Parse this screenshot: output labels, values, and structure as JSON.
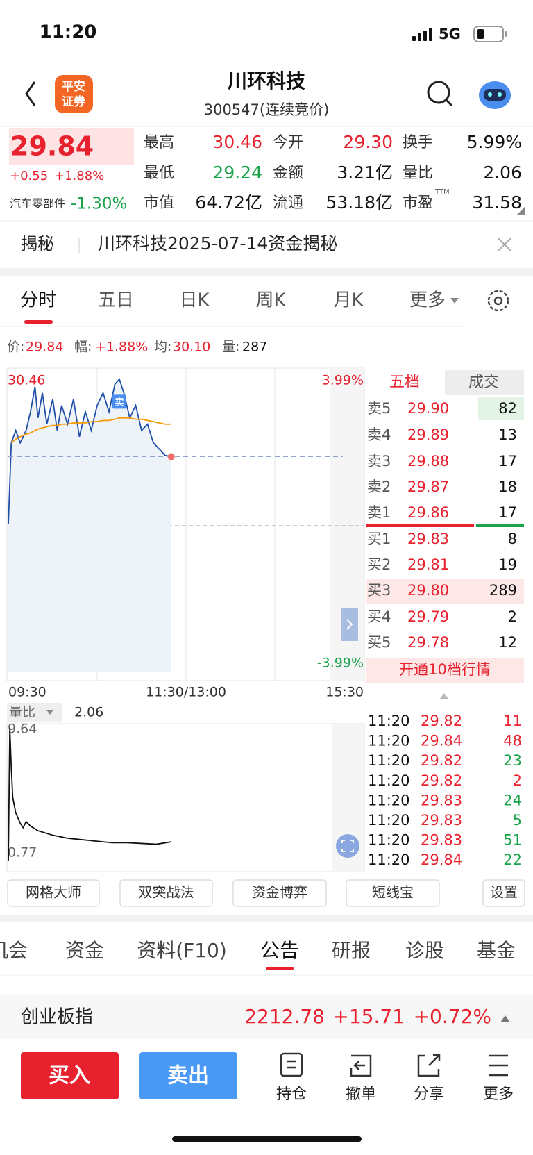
{
  "status_bar": {
    "time": "11:20",
    "network": "5G"
  },
  "header": {
    "logo": [
      "平安",
      "证券"
    ],
    "title": "川环科技",
    "subtitle": "300547(连续竞价)"
  },
  "quote": {
    "price": "29.84",
    "change": "+0.55",
    "change_pct": "+1.88%",
    "sector": "汽车零部件",
    "sector_change": "-1.30%",
    "ttm": "TTM",
    "stats": [
      {
        "label": "最高",
        "value": "30.46",
        "color": "#e8212e"
      },
      {
        "label": "今开",
        "value": "29.30",
        "color": "#e8212e"
      },
      {
        "label": "换手",
        "value": "5.99%",
        "color": "#111111"
      },
      {
        "label": "最低",
        "value": "29.24",
        "color": "#1aa34a"
      },
      {
        "label": "金额",
        "value": "3.21亿",
        "color": "#111111"
      },
      {
        "label": "量比",
        "value": "2.06",
        "color": "#111111"
      },
      {
        "label": "市值",
        "value": "64.72亿",
        "color": "#111111"
      },
      {
        "label": "流通",
        "value": "53.18亿",
        "color": "#111111"
      },
      {
        "label": "市盈",
        "value": "31.58",
        "color": "#111111"
      }
    ]
  },
  "banner": {
    "tag": "揭秘",
    "text": "川环科技2025-07-14资金揭秘"
  },
  "chart_tabs": [
    "分时",
    "五日",
    "日K",
    "周K",
    "月K",
    "更多"
  ],
  "info_line": {
    "price_label": "价:",
    "price": "29.84",
    "range_label": "幅:",
    "range": "+1.88%",
    "avg_label": "均:",
    "avg": "30.10",
    "vol_label": "量:",
    "vol": "287"
  },
  "volume_header": {
    "label": "量比",
    "value": "2.06"
  },
  "chart_data": [
    {
      "type": "line",
      "x": [
        0,
        2,
        5,
        8,
        12,
        15,
        18,
        20,
        23,
        26,
        30,
        33,
        36,
        40,
        44,
        48,
        52,
        56,
        60,
        64,
        68,
        72,
        75,
        78,
        82,
        86,
        90,
        94,
        98,
        102,
        106,
        110
      ],
      "xlim": [
        0,
        240
      ],
      "xticks": [
        {
          "value": 0,
          "label": "09:30"
        },
        {
          "value": 120,
          "label": "11:30/13:00"
        },
        {
          "value": 240,
          "label": "15:30"
        }
      ],
      "ylim": [
        28.12,
        30.46
      ],
      "yticks": [
        30.46,
        29.29,
        28.12
      ],
      "y2lim": [
        -3.99,
        3.99
      ],
      "y2ticks": [
        {
          "value": 3.99,
          "label": "3.99%"
        },
        {
          "value": -3.99,
          "label": "-3.99%"
        }
      ],
      "series": [
        {
          "color": "#1f4fa8",
          "fill": "#eef2f9",
          "values": [
            29.3,
            29.95,
            30.05,
            29.95,
            30.05,
            30.2,
            30.4,
            30.15,
            30.35,
            30.1,
            30.3,
            30.05,
            30.25,
            30.1,
            30.3,
            30.0,
            30.2,
            30.05,
            30.25,
            30.35,
            30.2,
            30.42,
            30.46,
            30.35,
            30.15,
            30.25,
            30.05,
            30.1,
            29.95,
            29.9,
            29.85,
            29.84
          ]
        },
        {
          "color": "#f39800",
          "values": [
            null,
            29.95,
            29.98,
            30.0,
            30.02,
            30.03,
            30.05,
            30.06,
            30.07,
            30.08,
            30.09,
            30.09,
            30.1,
            30.1,
            30.11,
            30.11,
            30.11,
            30.12,
            30.12,
            30.13,
            30.13,
            30.14,
            30.15,
            30.15,
            30.15,
            30.14,
            30.14,
            30.13,
            30.12,
            30.11,
            30.1,
            30.1
          ]
        }
      ],
      "annotations": [
        {
          "text": "卖",
          "x": 75,
          "y": 30.28
        }
      ],
      "last_marker": true,
      "grid": true
    },
    {
      "type": "line",
      "x": [
        0,
        1,
        2,
        3,
        5,
        8,
        10,
        12,
        15,
        20,
        30,
        40,
        50,
        60,
        70,
        80,
        90,
        100,
        110
      ],
      "xlim": [
        0,
        240
      ],
      "ylim": [
        0.77,
        9.64
      ],
      "yticks": [
        9.64,
        0.77
      ],
      "series": [
        {
          "color": "#111111",
          "values": [
            0.77,
            9.64,
            7.0,
            5.0,
            4.0,
            3.3,
            3.0,
            3.4,
            3.1,
            2.8,
            2.5,
            2.3,
            2.2,
            2.1,
            2.0,
            2.0,
            1.95,
            1.9,
            2.06
          ]
        }
      ],
      "last_marker": false,
      "grid": false
    }
  ],
  "order_book": {
    "tabs": [
      "五档",
      "成交"
    ],
    "asks": [
      {
        "label": "卖5",
        "price": "29.90",
        "volume": "82"
      },
      {
        "label": "卖4",
        "price": "29.89",
        "volume": "13"
      },
      {
        "label": "卖3",
        "price": "29.88",
        "volume": "17"
      },
      {
        "label": "卖2",
        "price": "29.87",
        "volume": "18"
      },
      {
        "label": "卖1",
        "price": "29.86",
        "volume": "17"
      }
    ],
    "bids": [
      {
        "label": "买1",
        "price": "29.83",
        "volume": "8"
      },
      {
        "label": "买2",
        "price": "29.81",
        "volume": "19"
      },
      {
        "label": "买3",
        "price": "29.80",
        "volume": "289",
        "highlight": true
      },
      {
        "label": "买4",
        "price": "29.79",
        "volume": "2"
      },
      {
        "label": "买5",
        "price": "29.78",
        "volume": "12"
      }
    ],
    "upgrade": "开通10档行情"
  },
  "trades": [
    {
      "time": "11:20",
      "price": "29.82",
      "volume": "11",
      "color": "#e8212e"
    },
    {
      "time": "11:20",
      "price": "29.84",
      "volume": "48",
      "color": "#e8212e"
    },
    {
      "time": "11:20",
      "price": "29.82",
      "volume": "23",
      "color": "#1aa34a"
    },
    {
      "time": "11:20",
      "price": "29.82",
      "volume": "2",
      "color": "#e8212e"
    },
    {
      "time": "11:20",
      "price": "29.83",
      "volume": "24",
      "color": "#1aa34a"
    },
    {
      "time": "11:20",
      "price": "29.83",
      "volume": "5",
      "color": "#1aa34a"
    },
    {
      "time": "11:20",
      "price": "29.83",
      "volume": "51",
      "color": "#1aa34a"
    },
    {
      "time": "11:20",
      "price": "29.84",
      "volume": "22",
      "color": "#1aa34a"
    }
  ],
  "tools": [
    "网格大师",
    "双突战法",
    "资金博弈",
    "短线宝",
    "设置"
  ],
  "sub_tabs": [
    "机会",
    "资金",
    "资料(F10)",
    "公告",
    "研报",
    "诊股",
    "基金"
  ],
  "index_bar": {
    "name": "创业板指",
    "value": "2212.78",
    "change": "+15.71",
    "change_pct": "+0.72%"
  },
  "actions": {
    "buy": "买入",
    "sell": "卖出",
    "items": [
      "持仓",
      "撤单",
      "分享",
      "更多"
    ]
  }
}
